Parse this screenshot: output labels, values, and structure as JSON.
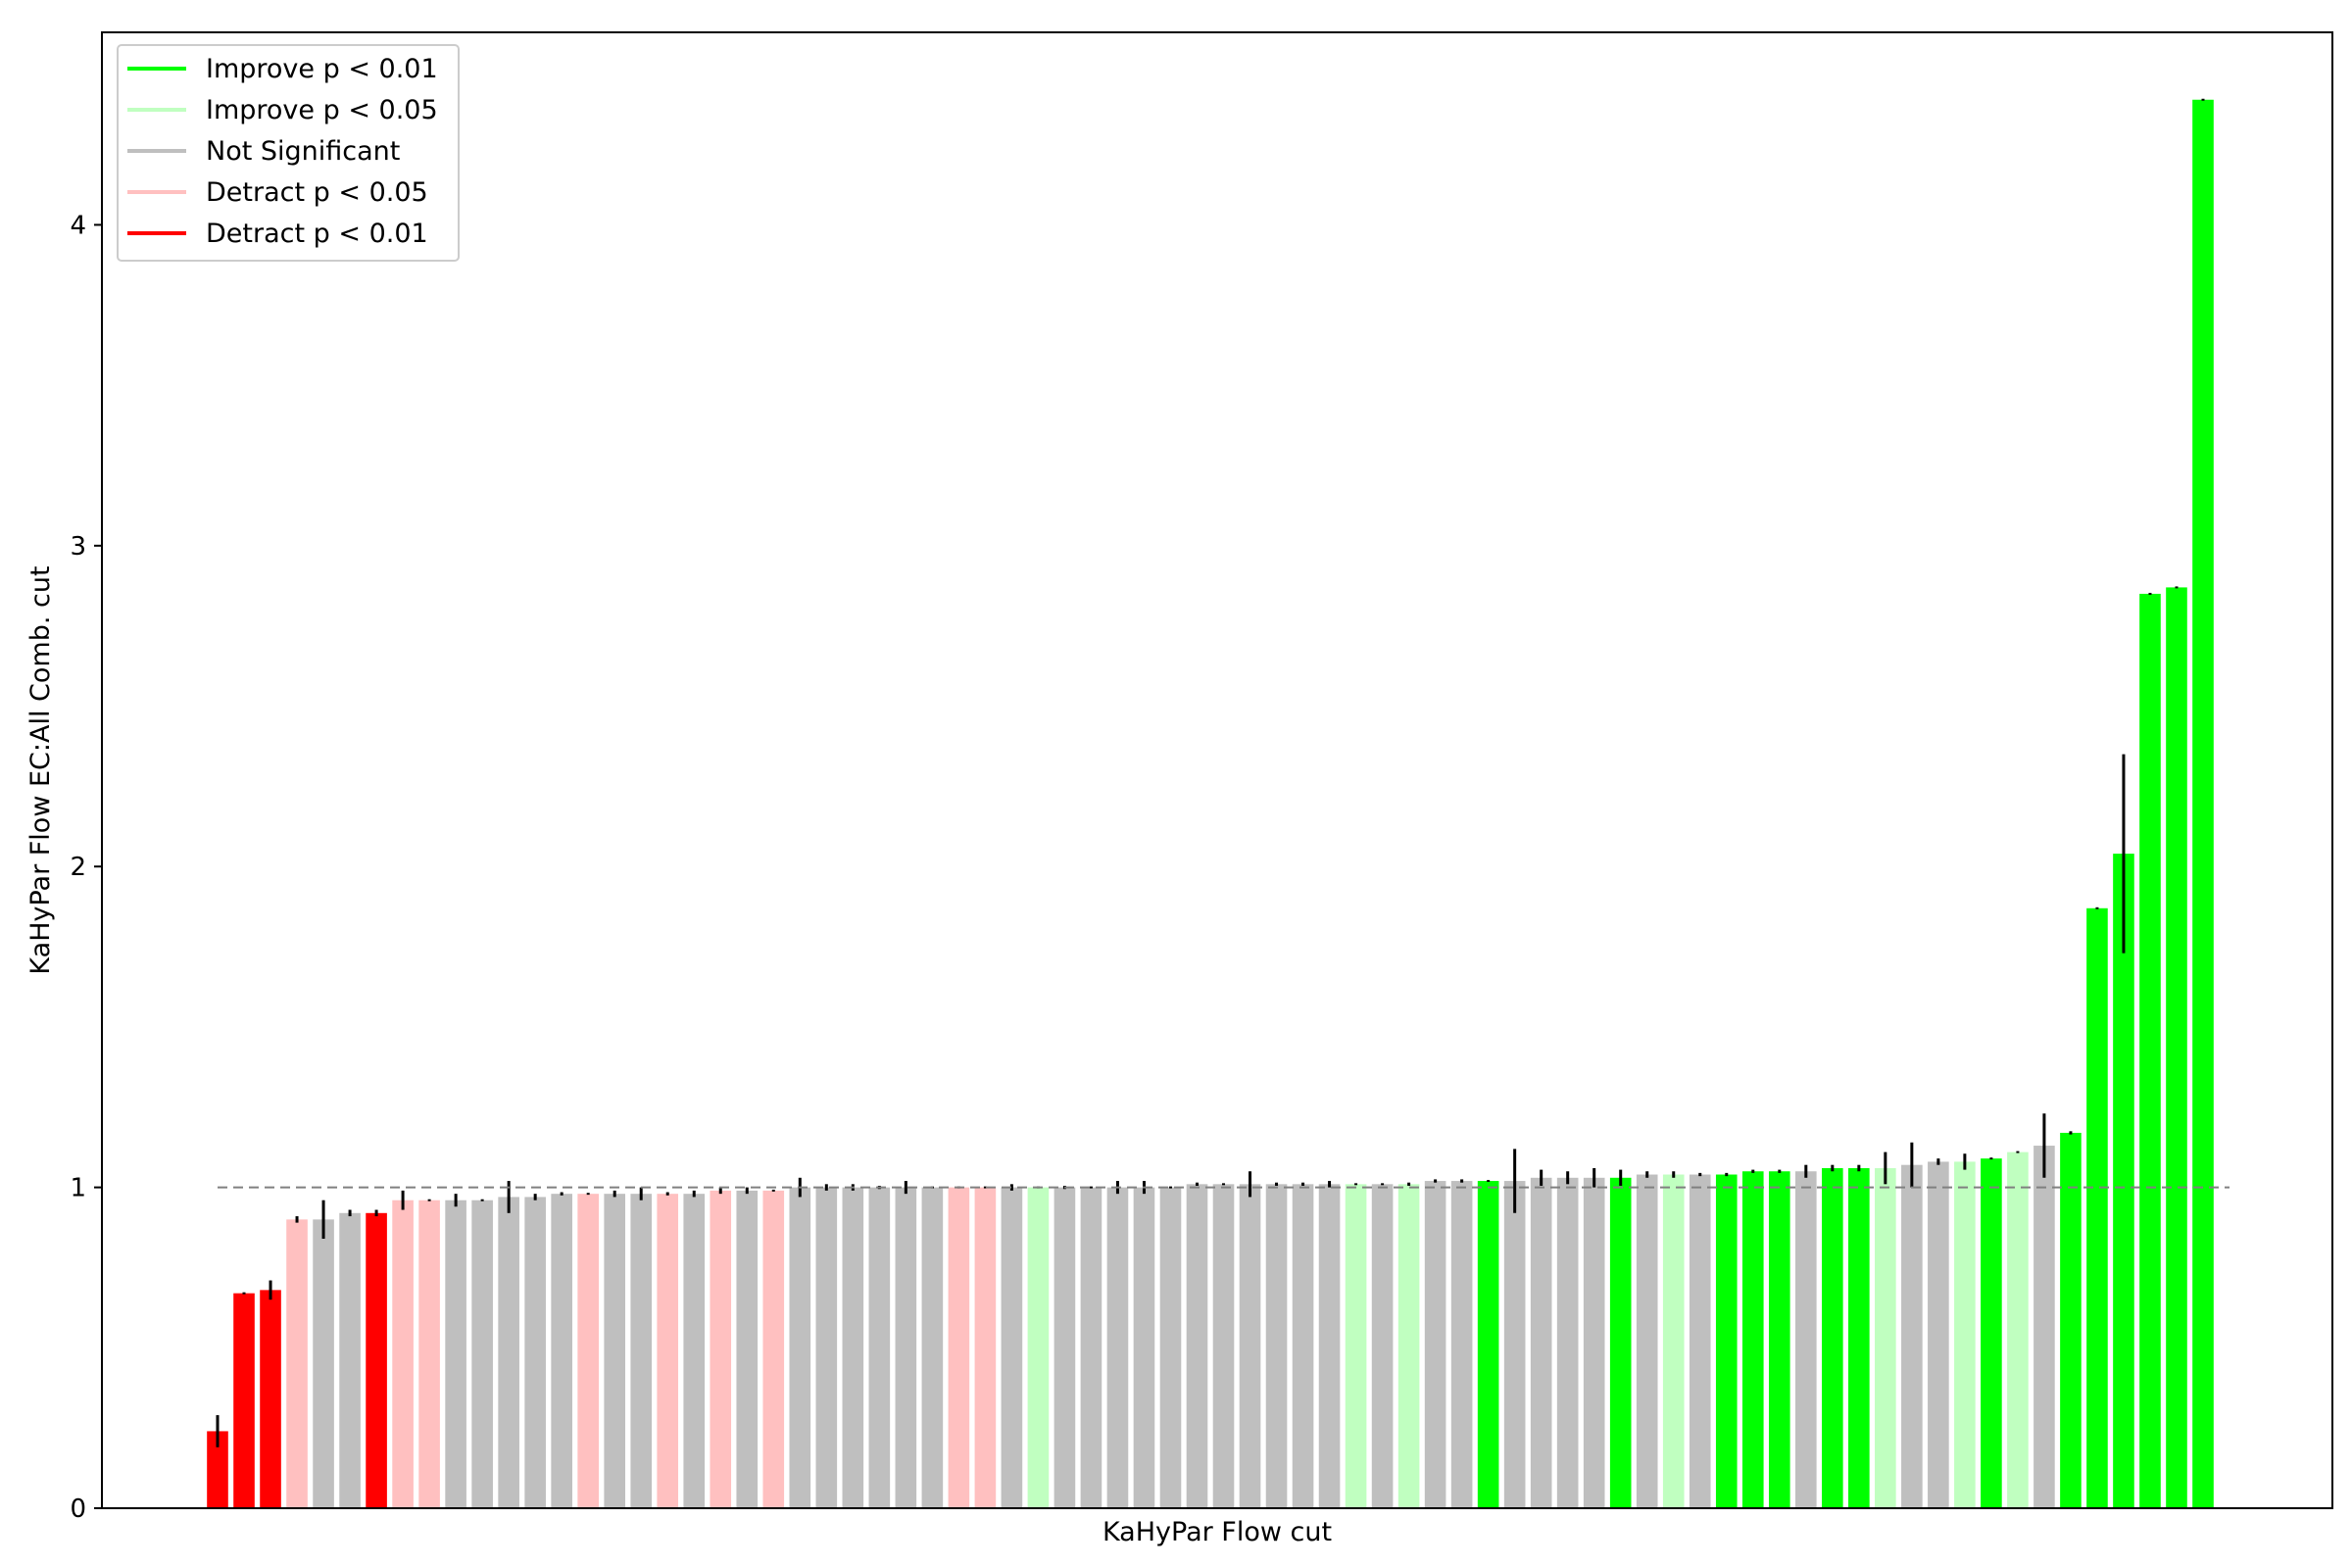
{
  "colors": {
    "improve_01": "#00ff00",
    "improve_05": "#c0ffc0",
    "not_sig": "#bfbfbf",
    "detract_05": "#ffc0c0",
    "detract_01": "#ff0000",
    "error_bar": "#000000",
    "reference_line": "#808080"
  },
  "chart_data": {
    "type": "bar",
    "title": "",
    "xlabel": "KaHyPar Flow cut",
    "ylabel": "KaHyPar Flow EC:All Comb. cut",
    "ylim": [
      0,
      4.6
    ],
    "yticks": [
      0,
      1,
      2,
      3,
      4
    ],
    "reference_line": 1.0,
    "grid": false,
    "legend_position": "top-left",
    "legend": [
      {
        "key": "improve_01",
        "label": "Improve p < 0.01"
      },
      {
        "key": "improve_05",
        "label": "Improve p < 0.05"
      },
      {
        "key": "not_sig",
        "label": "Not Significant"
      },
      {
        "key": "detract_05",
        "label": "Detract p < 0.05"
      },
      {
        "key": "detract_01",
        "label": "Detract p < 0.01"
      }
    ],
    "bars": [
      {
        "value": 0.24,
        "err": 0.05,
        "sig": "detract_01"
      },
      {
        "value": 0.67,
        "err": 0.003,
        "sig": "detract_01"
      },
      {
        "value": 0.68,
        "err": 0.03,
        "sig": "detract_01"
      },
      {
        "value": 0.9,
        "err": 0.01,
        "sig": "detract_05"
      },
      {
        "value": 0.9,
        "err": 0.06,
        "sig": "not_sig"
      },
      {
        "value": 0.92,
        "err": 0.01,
        "sig": "not_sig"
      },
      {
        "value": 0.92,
        "err": 0.01,
        "sig": "detract_01"
      },
      {
        "value": 0.96,
        "err": 0.03,
        "sig": "detract_05"
      },
      {
        "value": 0.96,
        "err": 0.002,
        "sig": "detract_05"
      },
      {
        "value": 0.96,
        "err": 0.02,
        "sig": "not_sig"
      },
      {
        "value": 0.96,
        "err": 0.002,
        "sig": "not_sig"
      },
      {
        "value": 0.97,
        "err": 0.05,
        "sig": "not_sig"
      },
      {
        "value": 0.97,
        "err": 0.01,
        "sig": "not_sig"
      },
      {
        "value": 0.98,
        "err": 0.005,
        "sig": "not_sig"
      },
      {
        "value": 0.98,
        "err": 0.002,
        "sig": "detract_05"
      },
      {
        "value": 0.98,
        "err": 0.01,
        "sig": "not_sig"
      },
      {
        "value": 0.98,
        "err": 0.02,
        "sig": "not_sig"
      },
      {
        "value": 0.98,
        "err": 0.005,
        "sig": "detract_05"
      },
      {
        "value": 0.98,
        "err": 0.01,
        "sig": "not_sig"
      },
      {
        "value": 0.99,
        "err": 0.01,
        "sig": "detract_05"
      },
      {
        "value": 0.99,
        "err": 0.01,
        "sig": "not_sig"
      },
      {
        "value": 0.99,
        "err": 0.002,
        "sig": "detract_05"
      },
      {
        "value": 1.0,
        "err": 0.03,
        "sig": "not_sig"
      },
      {
        "value": 1.0,
        "err": 0.01,
        "sig": "not_sig"
      },
      {
        "value": 1.0,
        "err": 0.01,
        "sig": "not_sig"
      },
      {
        "value": 1.0,
        "err": 0.005,
        "sig": "not_sig"
      },
      {
        "value": 1.0,
        "err": 0.02,
        "sig": "not_sig"
      },
      {
        "value": 1.0,
        "err": 0.002,
        "sig": "not_sig"
      },
      {
        "value": 1.0,
        "err": 0.002,
        "sig": "detract_05"
      },
      {
        "value": 1.0,
        "err": 0.002,
        "sig": "detract_05"
      },
      {
        "value": 1.0,
        "err": 0.01,
        "sig": "not_sig"
      },
      {
        "value": 1.0,
        "err": 0.002,
        "sig": "improve_05"
      },
      {
        "value": 1.0,
        "err": 0.005,
        "sig": "not_sig"
      },
      {
        "value": 1.0,
        "err": 0.002,
        "sig": "not_sig"
      },
      {
        "value": 1.0,
        "err": 0.02,
        "sig": "not_sig"
      },
      {
        "value": 1.0,
        "err": 0.02,
        "sig": "not_sig"
      },
      {
        "value": 1.0,
        "err": 0.002,
        "sig": "not_sig"
      },
      {
        "value": 1.01,
        "err": 0.005,
        "sig": "not_sig"
      },
      {
        "value": 1.01,
        "err": 0.002,
        "sig": "not_sig"
      },
      {
        "value": 1.01,
        "err": 0.04,
        "sig": "not_sig"
      },
      {
        "value": 1.01,
        "err": 0.005,
        "sig": "not_sig"
      },
      {
        "value": 1.01,
        "err": 0.005,
        "sig": "not_sig"
      },
      {
        "value": 1.01,
        "err": 0.01,
        "sig": "not_sig"
      },
      {
        "value": 1.01,
        "err": 0.002,
        "sig": "improve_05"
      },
      {
        "value": 1.01,
        "err": 0.002,
        "sig": "not_sig"
      },
      {
        "value": 1.01,
        "err": 0.005,
        "sig": "improve_05"
      },
      {
        "value": 1.02,
        "err": 0.005,
        "sig": "not_sig"
      },
      {
        "value": 1.02,
        "err": 0.005,
        "sig": "not_sig"
      },
      {
        "value": 1.02,
        "err": 0.002,
        "sig": "improve_01"
      },
      {
        "value": 1.02,
        "err": 0.1,
        "sig": "not_sig"
      },
      {
        "value": 1.03,
        "err": 0.025,
        "sig": "not_sig"
      },
      {
        "value": 1.03,
        "err": 0.02,
        "sig": "not_sig"
      },
      {
        "value": 1.03,
        "err": 0.03,
        "sig": "not_sig"
      },
      {
        "value": 1.03,
        "err": 0.025,
        "sig": "improve_01"
      },
      {
        "value": 1.04,
        "err": 0.01,
        "sig": "not_sig"
      },
      {
        "value": 1.04,
        "err": 0.01,
        "sig": "improve_05"
      },
      {
        "value": 1.04,
        "err": 0.005,
        "sig": "not_sig"
      },
      {
        "value": 1.04,
        "err": 0.005,
        "sig": "improve_01"
      },
      {
        "value": 1.05,
        "err": 0.005,
        "sig": "improve_01"
      },
      {
        "value": 1.05,
        "err": 0.005,
        "sig": "improve_01"
      },
      {
        "value": 1.05,
        "err": 0.02,
        "sig": "not_sig"
      },
      {
        "value": 1.06,
        "err": 0.01,
        "sig": "improve_01"
      },
      {
        "value": 1.06,
        "err": 0.01,
        "sig": "improve_01"
      },
      {
        "value": 1.06,
        "err": 0.05,
        "sig": "improve_05"
      },
      {
        "value": 1.07,
        "err": 0.07,
        "sig": "not_sig"
      },
      {
        "value": 1.08,
        "err": 0.01,
        "sig": "not_sig"
      },
      {
        "value": 1.08,
        "err": 0.025,
        "sig": "improve_05"
      },
      {
        "value": 1.09,
        "err": 0.002,
        "sig": "improve_01"
      },
      {
        "value": 1.11,
        "err": 0.002,
        "sig": "improve_05"
      },
      {
        "value": 1.13,
        "err": 0.1,
        "sig": "not_sig"
      },
      {
        "value": 1.17,
        "err": 0.005,
        "sig": "improve_01"
      },
      {
        "value": 1.87,
        "err": 0.002,
        "sig": "improve_01"
      },
      {
        "value": 2.04,
        "err": 0.31,
        "sig": "improve_01"
      },
      {
        "value": 2.85,
        "err": 0.002,
        "sig": "improve_01"
      },
      {
        "value": 2.87,
        "err": 0.002,
        "sig": "improve_01"
      },
      {
        "value": 4.39,
        "err": 0.002,
        "sig": "improve_01"
      }
    ]
  }
}
